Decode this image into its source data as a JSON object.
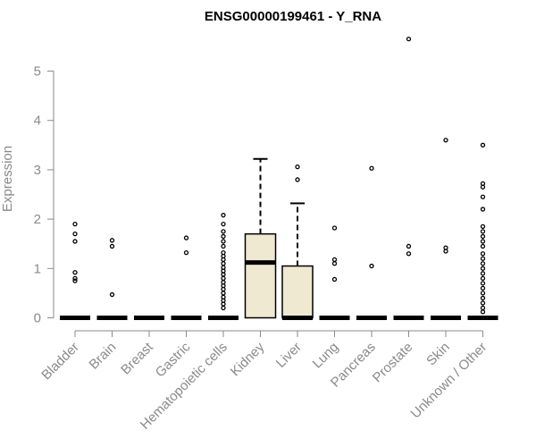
{
  "chart_data": {
    "type": "box",
    "title": "ENSG00000199461 - Y_RNA",
    "xlabel": "",
    "ylabel": "Expression",
    "ylim": [
      0,
      5.7
    ],
    "yticks": [
      0,
      1,
      2,
      3,
      4,
      5
    ],
    "grid": false,
    "box_fill": "#efe9d2",
    "categories": [
      "Bladder",
      "Brain",
      "Breast",
      "Gastric",
      "Hematopoietic cells",
      "Kidney",
      "Liver",
      "Lung",
      "Pancreas",
      "Prostate",
      "Skin",
      "Unknown / Other"
    ],
    "boxes": [
      {
        "q1": 0,
        "median": 0,
        "q3": 0,
        "whisker_high": 0,
        "outliers": [
          0.75,
          0.8,
          0.92,
          1.55,
          1.7,
          1.9
        ]
      },
      {
        "q1": 0,
        "median": 0,
        "q3": 0,
        "whisker_high": 0,
        "outliers": [
          0.47,
          1.45,
          1.57
        ]
      },
      {
        "q1": 0,
        "median": 0,
        "q3": 0,
        "whisker_high": 0,
        "outliers": []
      },
      {
        "q1": 0,
        "median": 0,
        "q3": 0,
        "whisker_high": 0,
        "outliers": [
          1.32,
          1.62
        ]
      },
      {
        "q1": 0,
        "median": 0,
        "q3": 0,
        "whisker_high": 0,
        "outliers": [
          0.2,
          0.28,
          0.35,
          0.42,
          0.5,
          0.58,
          0.65,
          0.72,
          0.8,
          0.88,
          0.95,
          1.02,
          1.1,
          1.18,
          1.25,
          1.32,
          1.45,
          1.55,
          1.65,
          1.75,
          1.9,
          2.08
        ]
      },
      {
        "q1": 0,
        "median": 1.12,
        "q3": 1.7,
        "whisker_high": 3.22,
        "outliers": []
      },
      {
        "q1": 0,
        "median": 0,
        "q3": 1.05,
        "whisker_high": 2.32,
        "outliers": [
          2.8,
          3.06
        ]
      },
      {
        "q1": 0,
        "median": 0,
        "q3": 0,
        "whisker_high": 0,
        "outliers": [
          0.78,
          1.1,
          1.18,
          1.82
        ]
      },
      {
        "q1": 0,
        "median": 0,
        "q3": 0,
        "whisker_high": 0,
        "outliers": [
          1.05,
          3.03
        ]
      },
      {
        "q1": 0,
        "median": 0,
        "q3": 0,
        "whisker_high": 0,
        "outliers": [
          1.3,
          1.45,
          5.65
        ]
      },
      {
        "q1": 0,
        "median": 0,
        "q3": 0,
        "whisker_high": 0,
        "outliers": [
          1.35,
          1.42,
          3.6
        ]
      },
      {
        "q1": 0,
        "median": 0,
        "q3": 0,
        "whisker_high": 0,
        "outliers": [
          0.12,
          0.2,
          0.3,
          0.4,
          0.5,
          0.6,
          0.7,
          0.8,
          0.9,
          1.0,
          1.1,
          1.2,
          1.3,
          1.45,
          1.55,
          1.65,
          1.75,
          1.85,
          2.2,
          2.45,
          2.65,
          2.72,
          3.5
        ]
      }
    ]
  }
}
